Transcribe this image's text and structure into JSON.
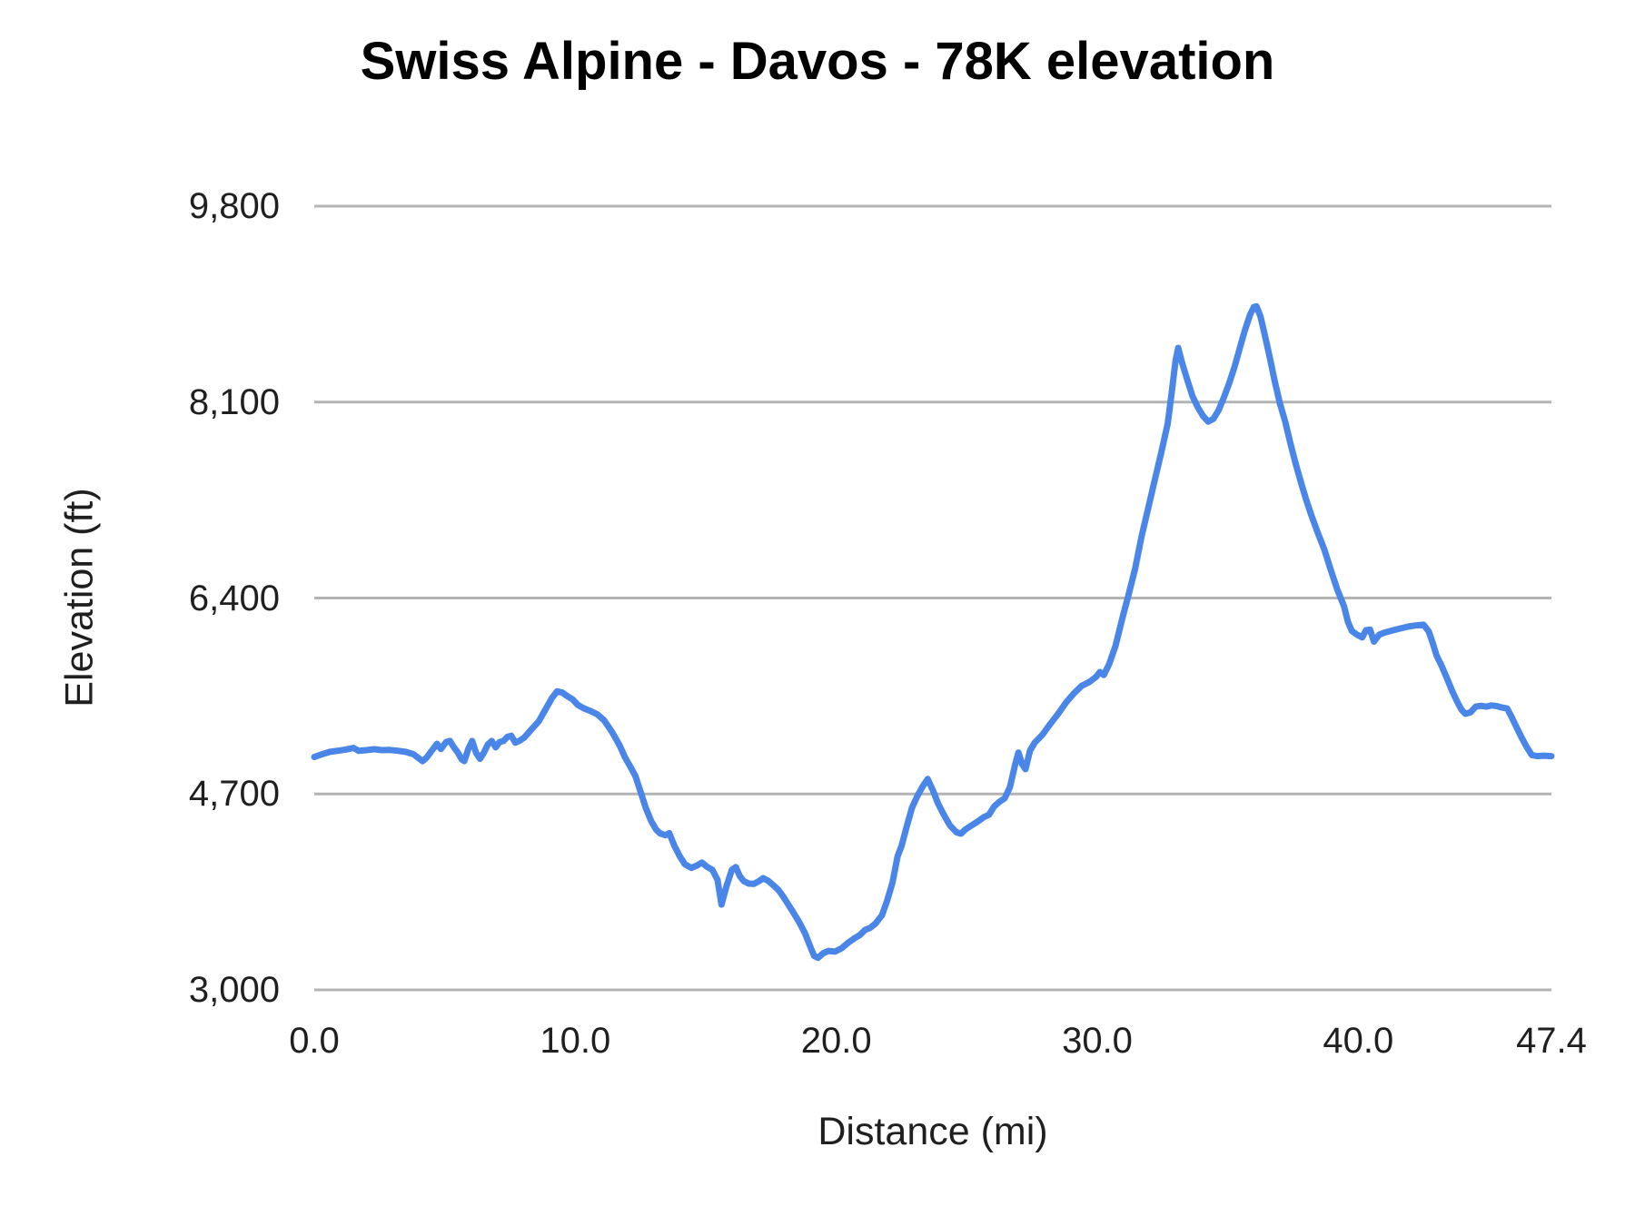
{
  "chart_data": {
    "type": "line",
    "title": "Swiss Alpine - Davos - 78K elevation",
    "xlabel": "Distance (mi)",
    "ylabel": "Elevation (ft)",
    "xlim": [
      0,
      47.4
    ],
    "ylim": [
      3000,
      9800
    ],
    "x_ticks": [
      0,
      10,
      20,
      30,
      40,
      47.4
    ],
    "x_tick_labels": [
      "0.0",
      "10.0",
      "20.0",
      "30.0",
      "40.0",
      "47.4"
    ],
    "y_ticks": [
      3000,
      4700,
      6400,
      8100,
      9800
    ],
    "y_tick_labels": [
      "3,000",
      "4,700",
      "6,400",
      "8,100",
      "9,800"
    ],
    "grid": true,
    "legend": false,
    "line_color": "#4a86e8",
    "gridline_color": "#b3b3b3",
    "series": [
      {
        "name": "Elevation",
        "points": [
          [
            0.0,
            5020
          ],
          [
            0.3,
            5045
          ],
          [
            0.6,
            5065
          ],
          [
            0.9,
            5075
          ],
          [
            1.2,
            5085
          ],
          [
            1.5,
            5100
          ],
          [
            1.7,
            5075
          ],
          [
            2.0,
            5080
          ],
          [
            2.3,
            5088
          ],
          [
            2.6,
            5080
          ],
          [
            2.9,
            5082
          ],
          [
            3.2,
            5075
          ],
          [
            3.5,
            5065
          ],
          [
            3.8,
            5045
          ],
          [
            4.0,
            5010
          ],
          [
            4.15,
            4985
          ],
          [
            4.3,
            5015
          ],
          [
            4.5,
            5075
          ],
          [
            4.7,
            5135
          ],
          [
            4.85,
            5090
          ],
          [
            5.05,
            5150
          ],
          [
            5.2,
            5160
          ],
          [
            5.35,
            5105
          ],
          [
            5.5,
            5060
          ],
          [
            5.65,
            5000
          ],
          [
            5.75,
            4985
          ],
          [
            5.9,
            5090
          ],
          [
            6.05,
            5160
          ],
          [
            6.2,
            5055
          ],
          [
            6.35,
            5005
          ],
          [
            6.5,
            5060
          ],
          [
            6.65,
            5130
          ],
          [
            6.8,
            5160
          ],
          [
            6.95,
            5105
          ],
          [
            7.1,
            5150
          ],
          [
            7.25,
            5160
          ],
          [
            7.4,
            5195
          ],
          [
            7.55,
            5205
          ],
          [
            7.7,
            5145
          ],
          [
            7.85,
            5160
          ],
          [
            8.05,
            5190
          ],
          [
            8.3,
            5255
          ],
          [
            8.6,
            5330
          ],
          [
            8.9,
            5450
          ],
          [
            9.1,
            5530
          ],
          [
            9.3,
            5590
          ],
          [
            9.5,
            5580
          ],
          [
            9.7,
            5548
          ],
          [
            9.9,
            5520
          ],
          [
            10.1,
            5472
          ],
          [
            10.35,
            5440
          ],
          [
            10.6,
            5418
          ],
          [
            10.85,
            5390
          ],
          [
            11.1,
            5340
          ],
          [
            11.4,
            5240
          ],
          [
            11.7,
            5120
          ],
          [
            11.9,
            5020
          ],
          [
            12.1,
            4940
          ],
          [
            12.3,
            4858
          ],
          [
            12.5,
            4720
          ],
          [
            12.7,
            4580
          ],
          [
            12.9,
            4468
          ],
          [
            13.1,
            4390
          ],
          [
            13.25,
            4358
          ],
          [
            13.45,
            4342
          ],
          [
            13.6,
            4360
          ],
          [
            13.8,
            4250
          ],
          [
            14.0,
            4160
          ],
          [
            14.2,
            4090
          ],
          [
            14.45,
            4058
          ],
          [
            14.65,
            4078
          ],
          [
            14.85,
            4105
          ],
          [
            15.05,
            4068
          ],
          [
            15.25,
            4042
          ],
          [
            15.45,
            3955
          ],
          [
            15.6,
            3740
          ],
          [
            15.8,
            3905
          ],
          [
            16.0,
            4042
          ],
          [
            16.15,
            4065
          ],
          [
            16.3,
            3988
          ],
          [
            16.45,
            3945
          ],
          [
            16.65,
            3922
          ],
          [
            16.85,
            3920
          ],
          [
            17.05,
            3945
          ],
          [
            17.2,
            3970
          ],
          [
            17.4,
            3945
          ],
          [
            17.6,
            3905
          ],
          [
            17.8,
            3862
          ],
          [
            18.0,
            3798
          ],
          [
            18.3,
            3692
          ],
          [
            18.6,
            3578
          ],
          [
            18.8,
            3492
          ],
          [
            19.0,
            3378
          ],
          [
            19.15,
            3295
          ],
          [
            19.3,
            3278
          ],
          [
            19.5,
            3318
          ],
          [
            19.7,
            3338
          ],
          [
            19.95,
            3332
          ],
          [
            20.2,
            3360
          ],
          [
            20.45,
            3408
          ],
          [
            20.7,
            3448
          ],
          [
            20.9,
            3475
          ],
          [
            21.1,
            3520
          ],
          [
            21.3,
            3538
          ],
          [
            21.5,
            3575
          ],
          [
            21.75,
            3648
          ],
          [
            21.95,
            3775
          ],
          [
            22.15,
            3930
          ],
          [
            22.35,
            4160
          ],
          [
            22.5,
            4248
          ],
          [
            22.7,
            4420
          ],
          [
            22.9,
            4580
          ],
          [
            23.1,
            4680
          ],
          [
            23.3,
            4762
          ],
          [
            23.5,
            4830
          ],
          [
            23.7,
            4732
          ],
          [
            23.9,
            4618
          ],
          [
            24.1,
            4528
          ],
          [
            24.35,
            4428
          ],
          [
            24.6,
            4368
          ],
          [
            24.78,
            4355
          ],
          [
            24.95,
            4392
          ],
          [
            25.15,
            4422
          ],
          [
            25.4,
            4458
          ],
          [
            25.65,
            4498
          ],
          [
            25.85,
            4520
          ],
          [
            26.05,
            4592
          ],
          [
            26.25,
            4632
          ],
          [
            26.45,
            4662
          ],
          [
            26.65,
            4758
          ],
          [
            26.85,
            4952
          ],
          [
            26.98,
            5060
          ],
          [
            27.12,
            4958
          ],
          [
            27.25,
            4915
          ],
          [
            27.42,
            5075
          ],
          [
            27.6,
            5145
          ],
          [
            27.9,
            5215
          ],
          [
            28.2,
            5308
          ],
          [
            28.5,
            5395
          ],
          [
            28.8,
            5492
          ],
          [
            29.1,
            5572
          ],
          [
            29.4,
            5638
          ],
          [
            29.7,
            5672
          ],
          [
            29.95,
            5715
          ],
          [
            30.1,
            5758
          ],
          [
            30.25,
            5732
          ],
          [
            30.45,
            5825
          ],
          [
            30.7,
            5985
          ],
          [
            30.95,
            6215
          ],
          [
            31.2,
            6430
          ],
          [
            31.45,
            6655
          ],
          [
            31.7,
            6940
          ],
          [
            31.95,
            7180
          ],
          [
            32.2,
            7420
          ],
          [
            32.45,
            7660
          ],
          [
            32.7,
            7915
          ],
          [
            32.85,
            8180
          ],
          [
            33.0,
            8460
          ],
          [
            33.1,
            8570
          ],
          [
            33.25,
            8440
          ],
          [
            33.45,
            8290
          ],
          [
            33.65,
            8150
          ],
          [
            33.85,
            8055
          ],
          [
            34.05,
            7980
          ],
          [
            34.25,
            7930
          ],
          [
            34.45,
            7955
          ],
          [
            34.65,
            8030
          ],
          [
            34.85,
            8140
          ],
          [
            35.05,
            8260
          ],
          [
            35.25,
            8400
          ],
          [
            35.45,
            8560
          ],
          [
            35.65,
            8720
          ],
          [
            35.85,
            8855
          ],
          [
            36.0,
            8925
          ],
          [
            36.1,
            8930
          ],
          [
            36.25,
            8845
          ],
          [
            36.4,
            8700
          ],
          [
            36.6,
            8495
          ],
          [
            36.8,
            8280
          ],
          [
            37.0,
            8085
          ],
          [
            37.2,
            7930
          ],
          [
            37.4,
            7740
          ],
          [
            37.6,
            7565
          ],
          [
            37.8,
            7405
          ],
          [
            38.0,
            7255
          ],
          [
            38.2,
            7120
          ],
          [
            38.45,
            6965
          ],
          [
            38.7,
            6820
          ],
          [
            38.95,
            6640
          ],
          [
            39.2,
            6470
          ],
          [
            39.45,
            6330
          ],
          [
            39.6,
            6195
          ],
          [
            39.75,
            6115
          ],
          [
            39.95,
            6082
          ],
          [
            40.15,
            6058
          ],
          [
            40.3,
            6122
          ],
          [
            40.45,
            6125
          ],
          [
            40.6,
            6022
          ],
          [
            40.8,
            6082
          ],
          [
            41.0,
            6100
          ],
          [
            41.3,
            6118
          ],
          [
            41.6,
            6135
          ],
          [
            41.9,
            6152
          ],
          [
            42.2,
            6162
          ],
          [
            42.5,
            6168
          ],
          [
            42.7,
            6110
          ],
          [
            42.85,
            6010
          ],
          [
            43.0,
            5900
          ],
          [
            43.2,
            5808
          ],
          [
            43.4,
            5700
          ],
          [
            43.6,
            5592
          ],
          [
            43.8,
            5495
          ],
          [
            43.95,
            5432
          ],
          [
            44.1,
            5395
          ],
          [
            44.3,
            5408
          ],
          [
            44.5,
            5458
          ],
          [
            44.7,
            5465
          ],
          [
            44.9,
            5458
          ],
          [
            45.1,
            5468
          ],
          [
            45.3,
            5462
          ],
          [
            45.5,
            5450
          ],
          [
            45.7,
            5442
          ],
          [
            45.85,
            5378
          ],
          [
            46.05,
            5285
          ],
          [
            46.25,
            5192
          ],
          [
            46.45,
            5108
          ],
          [
            46.65,
            5038
          ],
          [
            46.85,
            5028
          ],
          [
            47.1,
            5032
          ],
          [
            47.4,
            5028
          ]
        ]
      }
    ]
  }
}
